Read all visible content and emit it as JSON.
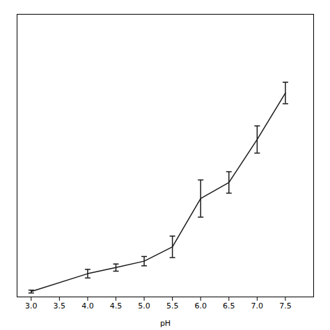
{
  "chart_data": {
    "type": "line",
    "xlabel": "pH",
    "x": [
      3.0,
      4.0,
      4.5,
      5.0,
      5.5,
      6.0,
      6.5,
      7.0,
      7.5
    ],
    "values": [
      0.005,
      0.055,
      0.072,
      0.09,
      0.13,
      0.265,
      0.31,
      0.43,
      0.56
    ],
    "yerr": [
      0.004,
      0.012,
      0.01,
      0.013,
      0.03,
      0.052,
      0.03,
      0.038,
      0.03
    ],
    "color": "#1a1a1a",
    "xlim": [
      2.75,
      8.0
    ],
    "ylim": [
      -0.01,
      0.78
    ],
    "xticks": [
      {
        "value": 3.0,
        "label": "3.0"
      },
      {
        "value": 3.5,
        "label": "3.5"
      },
      {
        "value": 4.0,
        "label": "4.0"
      },
      {
        "value": 4.5,
        "label": "4.5"
      },
      {
        "value": 5.0,
        "label": "5.0"
      },
      {
        "value": 5.5,
        "label": "5.5"
      },
      {
        "value": 6.0,
        "label": "6.0"
      },
      {
        "value": 6.5,
        "label": "6.5"
      },
      {
        "value": 7.0,
        "label": "7.0"
      },
      {
        "value": 7.5,
        "label": "7.5"
      }
    ],
    "grid": false,
    "tick_labels": "x"
  }
}
